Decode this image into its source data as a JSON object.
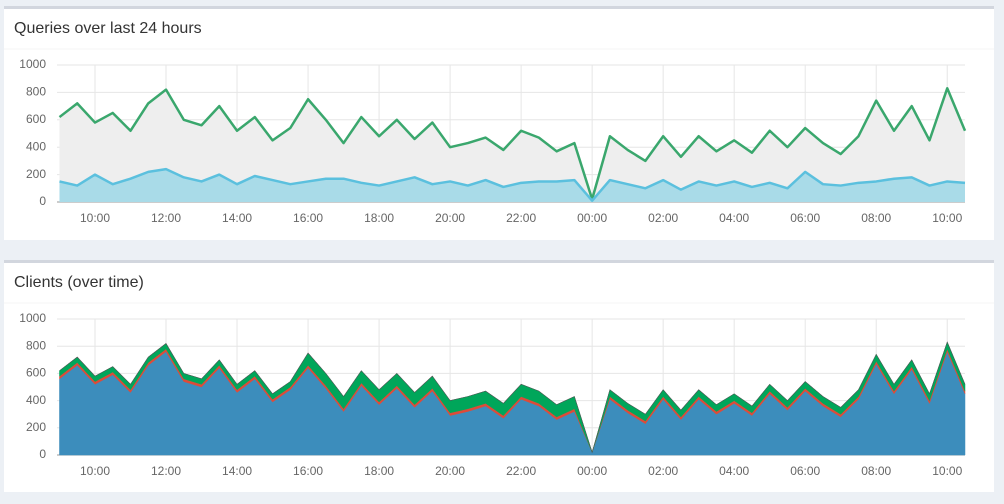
{
  "chart_data": [
    {
      "type": "line",
      "title": "Queries over last 24 hours",
      "x": [
        9,
        9.5,
        10,
        10.5,
        11,
        11.5,
        12,
        12.5,
        13,
        13.5,
        14,
        14.5,
        15,
        15.5,
        16,
        16.5,
        17,
        17.5,
        18,
        18.5,
        19,
        19.5,
        20,
        20.5,
        21,
        21.5,
        22,
        22.5,
        23,
        23.5,
        24,
        24.5,
        25,
        25.5,
        26,
        26.5,
        27,
        27.5,
        28,
        28.5,
        29,
        29.5,
        30,
        30.5,
        31,
        31.5,
        32,
        32.5,
        33,
        33.5,
        34,
        34.5
      ],
      "series": [
        {
          "color": "#3aa76d",
          "fill": "#eeeeee",
          "values": [
            620,
            720,
            580,
            650,
            520,
            720,
            820,
            600,
            560,
            700,
            520,
            620,
            450,
            540,
            750,
            600,
            430,
            620,
            480,
            600,
            460,
            580,
            400,
            430,
            470,
            380,
            520,
            470,
            370,
            430,
            20,
            480,
            380,
            300,
            480,
            330,
            480,
            370,
            450,
            360,
            520,
            400,
            540,
            430,
            350,
            480,
            740,
            520,
            700,
            450,
            830,
            520
          ]
        },
        {
          "color": "#5bc0de",
          "fill": "#a9dbe8",
          "values": [
            150,
            120,
            200,
            130,
            170,
            220,
            240,
            180,
            150,
            200,
            130,
            190,
            160,
            130,
            150,
            170,
            170,
            140,
            120,
            150,
            180,
            130,
            150,
            120,
            160,
            110,
            140,
            150,
            150,
            160,
            10,
            160,
            130,
            100,
            160,
            90,
            150,
            120,
            150,
            110,
            140,
            100,
            220,
            130,
            120,
            140,
            150,
            170,
            180,
            120,
            150,
            140
          ]
        }
      ],
      "xlim": [
        8.93,
        34.5
      ],
      "ylim": [
        0,
        1000
      ],
      "yticks": [
        0,
        200,
        400,
        600,
        800,
        1000
      ],
      "xticks": [
        {
          "value": 10,
          "label": "10:00"
        },
        {
          "value": 12,
          "label": "12:00"
        },
        {
          "value": 14,
          "label": "14:00"
        },
        {
          "value": 16,
          "label": "16:00"
        },
        {
          "value": 18,
          "label": "18:00"
        },
        {
          "value": 20,
          "label": "20:00"
        },
        {
          "value": 22,
          "label": "22:00"
        },
        {
          "value": 24,
          "label": "00:00"
        },
        {
          "value": 26,
          "label": "02:00"
        },
        {
          "value": 28,
          "label": "04:00"
        },
        {
          "value": 30,
          "label": "06:00"
        },
        {
          "value": 32,
          "label": "08:00"
        },
        {
          "value": 34,
          "label": "10:00"
        }
      ],
      "grid": true
    },
    {
      "type": "stacked_area",
      "title": "Clients (over time)",
      "x": [
        9,
        9.5,
        10,
        10.5,
        11,
        11.5,
        12,
        12.5,
        13,
        13.5,
        14,
        14.5,
        15,
        15.5,
        16,
        16.5,
        17,
        17.5,
        18,
        18.5,
        19,
        19.5,
        20,
        20.5,
        21,
        21.5,
        22,
        22.5,
        23,
        23.5,
        24,
        24.5,
        25,
        25.5,
        26,
        26.5,
        27,
        27.5,
        28,
        28.5,
        29,
        29.5,
        30,
        30.5,
        31,
        31.5,
        32,
        32.5,
        33,
        33.5,
        34,
        34.5
      ],
      "series": [
        {
          "color": "#3c8dbc",
          "values": [
            560,
            660,
            520,
            590,
            460,
            660,
            760,
            540,
            500,
            640,
            460,
            560,
            390,
            480,
            640,
            490,
            320,
            510,
            370,
            490,
            350,
            470,
            290,
            320,
            360,
            270,
            410,
            360,
            260,
            320,
            20,
            410,
            310,
            230,
            410,
            260,
            410,
            300,
            380,
            290,
            450,
            330,
            470,
            360,
            280,
            410,
            670,
            450,
            630,
            380,
            760,
            450
          ]
        },
        {
          "color": "#dd4b39",
          "values": [
            20,
            20,
            20,
            20,
            20,
            20,
            20,
            20,
            20,
            20,
            20,
            20,
            20,
            20,
            20,
            20,
            20,
            20,
            20,
            20,
            20,
            20,
            20,
            20,
            20,
            20,
            20,
            20,
            20,
            20,
            0,
            20,
            20,
            20,
            20,
            20,
            20,
            20,
            20,
            20,
            20,
            20,
            20,
            20,
            20,
            20,
            20,
            20,
            20,
            20,
            20,
            20
          ]
        },
        {
          "color": "#00a65a",
          "values": [
            40,
            40,
            40,
            40,
            40,
            40,
            40,
            40,
            40,
            40,
            40,
            40,
            40,
            40,
            90,
            90,
            90,
            90,
            90,
            90,
            90,
            90,
            90,
            90,
            90,
            90,
            90,
            90,
            90,
            90,
            0,
            50,
            50,
            50,
            50,
            50,
            50,
            50,
            50,
            50,
            50,
            50,
            50,
            50,
            50,
            50,
            50,
            50,
            50,
            50,
            50,
            50
          ]
        }
      ],
      "xlim": [
        8.93,
        34.5
      ],
      "ylim": [
        0,
        1000
      ],
      "yticks": [
        0,
        200,
        400,
        600,
        800,
        1000
      ],
      "xticks": [
        {
          "value": 10,
          "label": "10:00"
        },
        {
          "value": 12,
          "label": "12:00"
        },
        {
          "value": 14,
          "label": "14:00"
        },
        {
          "value": 16,
          "label": "16:00"
        },
        {
          "value": 18,
          "label": "18:00"
        },
        {
          "value": 20,
          "label": "20:00"
        },
        {
          "value": 22,
          "label": "22:00"
        },
        {
          "value": 24,
          "label": "00:00"
        },
        {
          "value": 26,
          "label": "02:00"
        },
        {
          "value": 28,
          "label": "04:00"
        },
        {
          "value": 30,
          "label": "06:00"
        },
        {
          "value": 32,
          "label": "08:00"
        },
        {
          "value": 34,
          "label": "10:00"
        }
      ],
      "grid": true
    }
  ]
}
